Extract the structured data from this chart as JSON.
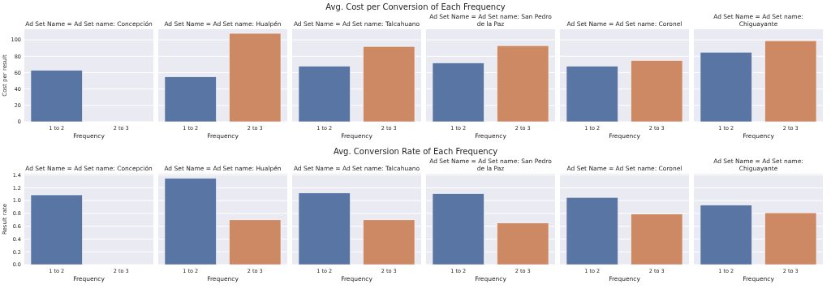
{
  "chart_data": [
    {
      "type": "bar",
      "title": "Ad Set Name = Ad Set name: Concepción",
      "annotations": [
        "Avg. Cost per Conversion of Each Frequency"
      ],
      "xlabel": "Frequency",
      "ylabel": "Cost per result",
      "categories": [
        "1 to 2",
        "2 to 3"
      ],
      "values": [
        63,
        null
      ],
      "colors": [
        "#5975a4",
        null
      ],
      "ylim": [
        0,
        113
      ],
      "yticks": [
        0,
        20,
        40,
        60,
        80,
        100
      ],
      "grid": "y"
    },
    {
      "type": "bar",
      "title": "Ad Set Name = Ad Set name: Hualpén",
      "xlabel": "Frequency",
      "categories": [
        "1 to 2",
        "2 to 3"
      ],
      "values": [
        55,
        108
      ],
      "colors": [
        "#5975a4",
        "#cc8963"
      ],
      "ylim": [
        0,
        113
      ],
      "yticks": [
        0,
        20,
        40,
        60,
        80,
        100
      ],
      "grid": "y",
      "tick_labels": "x"
    },
    {
      "type": "bar",
      "title": "Ad Set Name = Ad Set name: Talcahuano",
      "xlabel": "Frequency",
      "categories": [
        "1 to 2",
        "2 to 3"
      ],
      "values": [
        68,
        92
      ],
      "colors": [
        "#5975a4",
        "#cc8963"
      ],
      "ylim": [
        0,
        113
      ],
      "yticks": [
        0,
        20,
        40,
        60,
        80,
        100
      ],
      "grid": "y",
      "tick_labels": "x"
    },
    {
      "type": "bar",
      "title": "Ad Set Name = Ad Set name: San Pedro de la Paz",
      "xlabel": "Frequency",
      "categories": [
        "1 to 2",
        "2 to 3"
      ],
      "values": [
        72,
        93
      ],
      "colors": [
        "#5975a4",
        "#cc8963"
      ],
      "ylim": [
        0,
        113
      ],
      "yticks": [
        0,
        20,
        40,
        60,
        80,
        100
      ],
      "grid": "y",
      "tick_labels": "x"
    },
    {
      "type": "bar",
      "title": "Ad Set Name = Ad Set name: Coronel",
      "xlabel": "Frequency",
      "categories": [
        "1 to 2",
        "2 to 3"
      ],
      "values": [
        68,
        75
      ],
      "colors": [
        "#5975a4",
        "#cc8963"
      ],
      "ylim": [
        0,
        113
      ],
      "yticks": [
        0,
        20,
        40,
        60,
        80,
        100
      ],
      "grid": "y",
      "tick_labels": "x"
    },
    {
      "type": "bar",
      "title": "Ad Set Name = Ad Set name: Chiguayante",
      "xlabel": "Frequency",
      "categories": [
        "1 to 2",
        "2 to 3"
      ],
      "values": [
        85,
        99
      ],
      "colors": [
        "#5975a4",
        "#cc8963"
      ],
      "ylim": [
        0,
        113
      ],
      "yticks": [
        0,
        20,
        40,
        60,
        80,
        100
      ],
      "grid": "y",
      "tick_labels": "x"
    },
    {
      "type": "bar",
      "title": "Ad Set Name = Ad Set name: Concepción",
      "annotations": [
        "Avg. Conversion Rate of Each Frequency"
      ],
      "xlabel": "Frequency",
      "ylabel": "Result rate",
      "categories": [
        "1 to 2",
        "2 to 3"
      ],
      "values": [
        1.09,
        null
      ],
      "colors": [
        "#5975a4",
        null
      ],
      "ylim": [
        0,
        1.42
      ],
      "yticks": [
        {
          "value": 0,
          "label": "0.0"
        },
        0.2,
        0.4,
        0.6,
        0.8,
        {
          "value": 1,
          "label": "1.0"
        },
        1.2,
        1.4
      ],
      "grid": "y"
    },
    {
      "type": "bar",
      "title": "Ad Set Name = Ad Set name: Hualpén",
      "xlabel": "Frequency",
      "categories": [
        "1 to 2",
        "2 to 3"
      ],
      "values": [
        1.35,
        0.7
      ],
      "colors": [
        "#5975a4",
        "#cc8963"
      ],
      "ylim": [
        0,
        1.42
      ],
      "yticks": [
        0,
        0.2,
        0.4,
        0.6,
        0.8,
        1,
        1.2,
        1.4
      ],
      "grid": "y",
      "tick_labels": "x"
    },
    {
      "type": "bar",
      "title": "Ad Set Name = Ad Set name: Talcahuano",
      "xlabel": "Frequency",
      "categories": [
        "1 to 2",
        "2 to 3"
      ],
      "values": [
        1.12,
        0.7
      ],
      "colors": [
        "#5975a4",
        "#cc8963"
      ],
      "ylim": [
        0,
        1.42
      ],
      "yticks": [
        0,
        0.2,
        0.4,
        0.6,
        0.8,
        1,
        1.2,
        1.4
      ],
      "grid": "y",
      "tick_labels": "x"
    },
    {
      "type": "bar",
      "title": "Ad Set Name = Ad Set name: San Pedro de la Paz",
      "xlabel": "Frequency",
      "categories": [
        "1 to 2",
        "2 to 3"
      ],
      "values": [
        1.11,
        0.65
      ],
      "colors": [
        "#5975a4",
        "#cc8963"
      ],
      "ylim": [
        0,
        1.42
      ],
      "yticks": [
        0,
        0.2,
        0.4,
        0.6,
        0.8,
        1,
        1.2,
        1.4
      ],
      "grid": "y",
      "tick_labels": "x"
    },
    {
      "type": "bar",
      "title": "Ad Set Name = Ad Set name: Coronel",
      "xlabel": "Frequency",
      "categories": [
        "1 to 2",
        "2 to 3"
      ],
      "values": [
        1.05,
        0.79
      ],
      "colors": [
        "#5975a4",
        "#cc8963"
      ],
      "ylim": [
        0,
        1.42
      ],
      "yticks": [
        0,
        0.2,
        0.4,
        0.6,
        0.8,
        1,
        1.2,
        1.4
      ],
      "grid": "y",
      "tick_labels": "x"
    },
    {
      "type": "bar",
      "title": "Ad Set Name = Ad Set name: Chiguayante",
      "xlabel": "Frequency",
      "categories": [
        "1 to 2",
        "2 to 3"
      ],
      "values": [
        0.93,
        0.81
      ],
      "colors": [
        "#5975a4",
        "#cc8963"
      ],
      "ylim": [
        0,
        1.42
      ],
      "yticks": [
        0,
        0.2,
        0.4,
        0.6,
        0.8,
        1,
        1.2,
        1.4
      ],
      "grid": "y",
      "tick_labels": "x"
    }
  ]
}
